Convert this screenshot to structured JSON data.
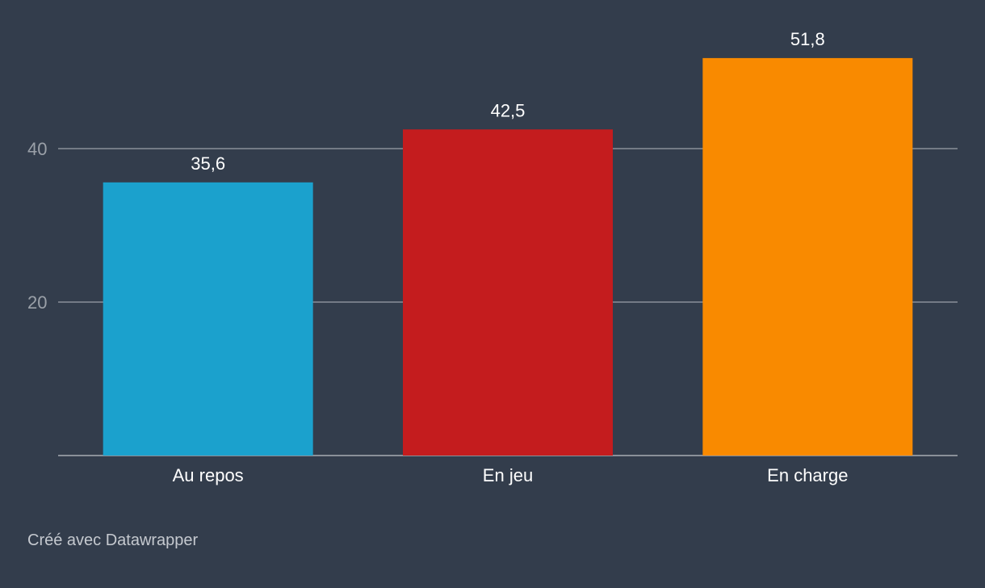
{
  "chart_data": {
    "type": "bar",
    "categories": [
      "Au repos",
      "En jeu",
      "En charge"
    ],
    "values": [
      35.6,
      42.5,
      51.8
    ],
    "value_labels": [
      "35,6",
      "42,5",
      "51,8"
    ],
    "colors": [
      "#1ba1cd",
      "#c41c1e",
      "#f98a00"
    ],
    "yticks": [
      20,
      40
    ],
    "ylim": [
      0,
      55
    ],
    "grid": true,
    "title": "",
    "xlabel": "",
    "ylabel": ""
  },
  "footer": {
    "credit": "Créé avec Datawrapper"
  },
  "colors": {
    "background": "#333d4c",
    "grid": "#8a9099",
    "text": "#ffffff",
    "muted": "#9aa0a8"
  }
}
